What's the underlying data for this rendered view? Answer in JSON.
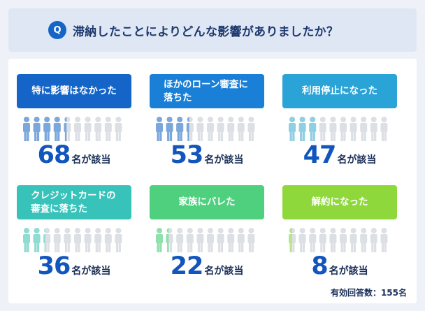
{
  "question": {
    "badge": "Q",
    "text": "滞納したことによりどんな影響がありましたか？"
  },
  "chart_data": {
    "type": "bar",
    "categories": [
      "特に影響はなかった",
      "ほかのローン審査に落ちた",
      "利用停止になった",
      "クレジットカードの審査に落ちた",
      "家族にバレた",
      "解約になった"
    ],
    "values": [
      68,
      53,
      47,
      36,
      22,
      8
    ],
    "unit_suffix": "名が該当",
    "total_label": "有効回答数：155名",
    "colors": [
      "#1565c8",
      "#1a7fd6",
      "#2aa3d6",
      "#37c2ba",
      "#4ed07e",
      "#8fd83c"
    ],
    "figure_colors": [
      "#7aa7dc",
      "#7aa7dc",
      "#8fcfe4",
      "#8fdcd2",
      "#8fe0ad",
      "#b7e58a"
    ],
    "icons_total": 10
  },
  "cards": [
    {
      "label_lines": [
        "特に影響はなかった"
      ],
      "count": "68",
      "suffix": "名が該当",
      "filled_icons": 4.4
    },
    {
      "label_lines": [
        "ほかのローン審査に",
        "落ちた"
      ],
      "count": "53",
      "suffix": "名が該当",
      "filled_icons": 3.4
    },
    {
      "label_lines": [
        "利用停止になった"
      ],
      "count": "47",
      "suffix": "名が該当",
      "filled_icons": 3.0
    },
    {
      "label_lines": [
        "クレジットカードの",
        "審査に落ちた"
      ],
      "count": "36",
      "suffix": "名が該当",
      "filled_icons": 2.3
    },
    {
      "label_lines": [
        "家族にバレた"
      ],
      "count": "22",
      "suffix": "名が該当",
      "filled_icons": 1.4
    },
    {
      "label_lines": [
        "解約になった"
      ],
      "count": "8",
      "suffix": "名が該当",
      "filled_icons": 0.5
    }
  ],
  "icon": "person-icon"
}
